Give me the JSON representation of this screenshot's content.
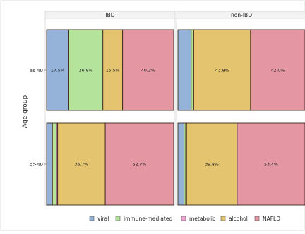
{
  "chart_data": {
    "type": "bar",
    "stacked": "100%",
    "orientation": "horizontal",
    "ylabel": "Age group",
    "panels": [
      "IBD",
      "non-IBD"
    ],
    "categories": [
      "≤ 40",
      "> 40"
    ],
    "category_labels": [
      "as 40",
      "b>40"
    ],
    "series": [
      {
        "name": "viral",
        "color": "#95b3d8"
      },
      {
        "name": "immune-mediated",
        "color": "#b4e49c"
      },
      {
        "name": "metabolic",
        "color": "#f2a3d6"
      },
      {
        "name": "alcohol",
        "color": "#e4c46f"
      },
      {
        "name": "NAFLD",
        "color": "#e497a3"
      }
    ],
    "values": {
      "IBD": {
        "≤ 40": [
          17.5,
          26.8,
          0.0,
          15.5,
          40.2
        ],
        "> 40": [
          4.5,
          3.1,
          0.9,
          36.7,
          52.7
        ]
      },
      "non-IBD": {
        "≤ 40": [
          10.2,
          1.5,
          0.5,
          43.8,
          42.0
        ],
        "> 40": [
          4.8,
          1.3,
          0.7,
          39.8,
          53.4
        ]
      }
    },
    "data_labels": {
      "IBD": {
        "≤ 40": [
          "17.5%",
          "26.8%",
          "",
          "15.5%",
          "40.2%"
        ],
        "> 40": [
          "",
          "",
          "",
          "36.7%",
          "52.7%"
        ]
      },
      "non-IBD": {
        "≤ 40": [
          "",
          "",
          "",
          "43.8%",
          "42.0%"
        ],
        "> 40": [
          "",
          "",
          "",
          "39.8%",
          "53.4%"
        ]
      }
    },
    "legend": [
      "viral",
      "immune-mediated",
      "metabolic",
      "alcohol",
      "NAFLD"
    ],
    "legend_position": "bottom",
    "grid": false
  }
}
